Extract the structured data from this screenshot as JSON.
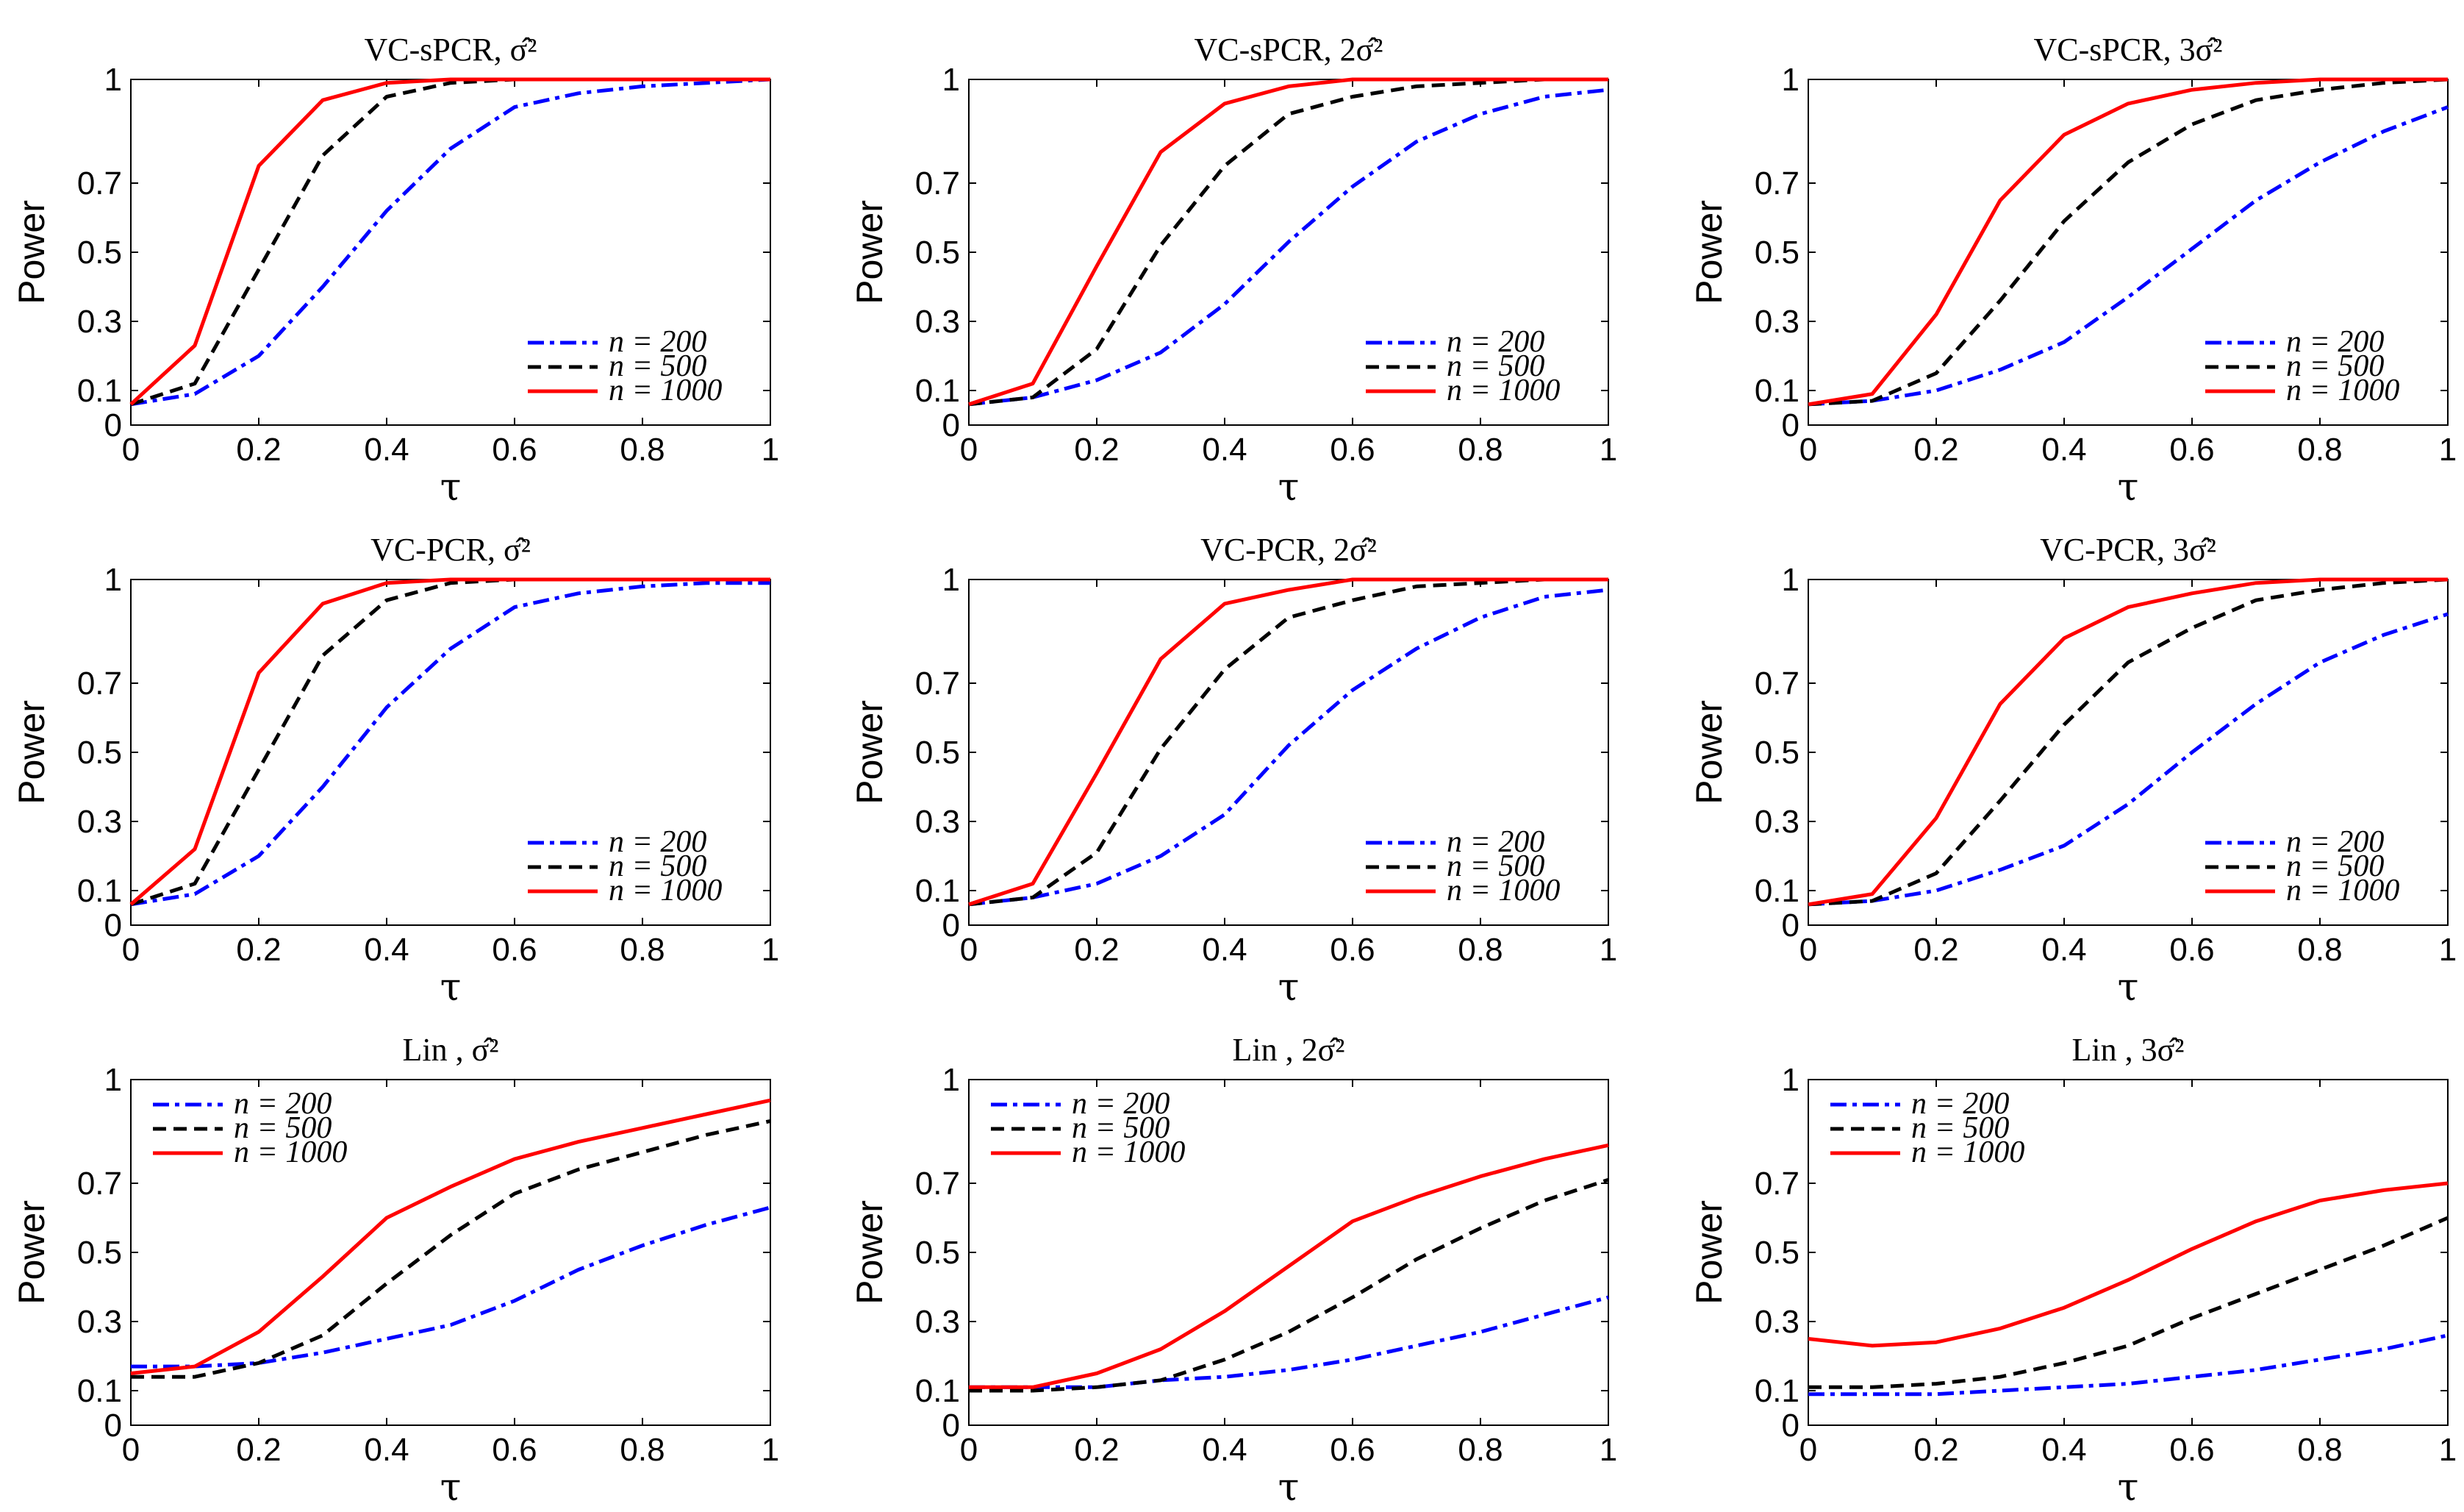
{
  "colors": {
    "n200": "#0000ff",
    "n500": "#000000",
    "n1000": "#ff0000"
  },
  "chart_data": [
    {
      "type": "line",
      "title": "VC-sPCR, σ̂²",
      "xlabel": "τ",
      "ylabel": "Power",
      "xlim": [
        0,
        1
      ],
      "ylim": [
        0,
        1
      ],
      "xticks": [
        "0",
        "0.2",
        "0.4",
        "0.6",
        "0.8",
        "1"
      ],
      "yticks": [
        "0",
        "0.1",
        "0.3",
        "0.5",
        "0.7",
        "1"
      ],
      "legend_position": "bottom-right",
      "x": [
        0,
        0.1,
        0.2,
        0.3,
        0.4,
        0.5,
        0.6,
        0.7,
        0.8,
        0.9,
        1
      ],
      "series": [
        {
          "name": "n = 200",
          "values": [
            0.06,
            0.09,
            0.2,
            0.4,
            0.62,
            0.8,
            0.92,
            0.96,
            0.98,
            0.99,
            1.0
          ]
        },
        {
          "name": "n = 500",
          "values": [
            0.06,
            0.12,
            0.45,
            0.78,
            0.95,
            0.99,
            1.0,
            1.0,
            1.0,
            1.0,
            1.0
          ]
        },
        {
          "name": "n = 1000",
          "values": [
            0.06,
            0.23,
            0.75,
            0.94,
            0.99,
            1.0,
            1.0,
            1.0,
            1.0,
            1.0,
            1.0
          ]
        }
      ]
    },
    {
      "type": "line",
      "title": "VC-sPCR, 2σ̂²",
      "xlabel": "τ",
      "ylabel": "Power",
      "xlim": [
        0,
        1
      ],
      "ylim": [
        0,
        1
      ],
      "xticks": [
        "0",
        "0.2",
        "0.4",
        "0.6",
        "0.8",
        "1"
      ],
      "yticks": [
        "0",
        "0.1",
        "0.3",
        "0.5",
        "0.7",
        "1"
      ],
      "legend_position": "bottom-right",
      "x": [
        0,
        0.1,
        0.2,
        0.3,
        0.4,
        0.5,
        0.6,
        0.7,
        0.8,
        0.9,
        1
      ],
      "series": [
        {
          "name": "n = 200",
          "values": [
            0.06,
            0.08,
            0.13,
            0.21,
            0.35,
            0.53,
            0.69,
            0.82,
            0.9,
            0.95,
            0.97
          ]
        },
        {
          "name": "n = 500",
          "values": [
            0.06,
            0.08,
            0.22,
            0.52,
            0.75,
            0.9,
            0.95,
            0.98,
            0.99,
            1.0,
            1.0
          ]
        },
        {
          "name": "n = 1000",
          "values": [
            0.06,
            0.12,
            0.46,
            0.79,
            0.93,
            0.98,
            1.0,
            1.0,
            1.0,
            1.0,
            1.0
          ]
        }
      ]
    },
    {
      "type": "line",
      "title": "VC-sPCR, 3σ̂²",
      "xlabel": "τ",
      "ylabel": "Power",
      "xlim": [
        0,
        1
      ],
      "ylim": [
        0,
        1
      ],
      "xticks": [
        "0",
        "0.2",
        "0.4",
        "0.6",
        "0.8",
        "1"
      ],
      "yticks": [
        "0",
        "0.1",
        "0.3",
        "0.5",
        "0.7",
        "1"
      ],
      "legend_position": "bottom-right",
      "x": [
        0,
        0.1,
        0.2,
        0.3,
        0.4,
        0.5,
        0.6,
        0.7,
        0.8,
        0.9,
        1
      ],
      "series": [
        {
          "name": "n = 200",
          "values": [
            0.06,
            0.07,
            0.1,
            0.16,
            0.24,
            0.37,
            0.51,
            0.65,
            0.76,
            0.85,
            0.92
          ]
        },
        {
          "name": "n = 500",
          "values": [
            0.06,
            0.07,
            0.15,
            0.36,
            0.59,
            0.76,
            0.87,
            0.94,
            0.97,
            0.99,
            1.0
          ]
        },
        {
          "name": "n = 1000",
          "values": [
            0.06,
            0.09,
            0.32,
            0.65,
            0.84,
            0.93,
            0.97,
            0.99,
            1.0,
            1.0,
            1.0
          ]
        }
      ]
    },
    {
      "type": "line",
      "title": "VC-PCR, σ̂²",
      "xlabel": "τ",
      "ylabel": "Power",
      "xlim": [
        0,
        1
      ],
      "ylim": [
        0,
        1
      ],
      "xticks": [
        "0",
        "0.2",
        "0.4",
        "0.6",
        "0.8",
        "1"
      ],
      "yticks": [
        "0",
        "0.1",
        "0.3",
        "0.5",
        "0.7",
        "1"
      ],
      "legend_position": "bottom-right",
      "x": [
        0,
        0.1,
        0.2,
        0.3,
        0.4,
        0.5,
        0.6,
        0.7,
        0.8,
        0.9,
        1
      ],
      "series": [
        {
          "name": "n = 200",
          "values": [
            0.06,
            0.09,
            0.2,
            0.4,
            0.63,
            0.8,
            0.92,
            0.96,
            0.98,
            0.99,
            0.99
          ]
        },
        {
          "name": "n = 500",
          "values": [
            0.06,
            0.12,
            0.45,
            0.78,
            0.94,
            0.99,
            1.0,
            1.0,
            1.0,
            1.0,
            1.0
          ]
        },
        {
          "name": "n = 1000",
          "values": [
            0.06,
            0.22,
            0.73,
            0.93,
            0.99,
            1.0,
            1.0,
            1.0,
            1.0,
            1.0,
            1.0
          ]
        }
      ]
    },
    {
      "type": "line",
      "title": "VC-PCR, 2σ̂²",
      "xlabel": "τ",
      "ylabel": "Power",
      "xlim": [
        0,
        1
      ],
      "ylim": [
        0,
        1
      ],
      "xticks": [
        "0",
        "0.2",
        "0.4",
        "0.6",
        "0.8",
        "1"
      ],
      "yticks": [
        "0",
        "0.1",
        "0.3",
        "0.5",
        "0.7",
        "1"
      ],
      "legend_position": "bottom-right",
      "x": [
        0,
        0.1,
        0.2,
        0.3,
        0.4,
        0.5,
        0.6,
        0.7,
        0.8,
        0.9,
        1
      ],
      "series": [
        {
          "name": "n = 200",
          "values": [
            0.06,
            0.08,
            0.12,
            0.2,
            0.32,
            0.52,
            0.68,
            0.8,
            0.89,
            0.95,
            0.97
          ]
        },
        {
          "name": "n = 500",
          "values": [
            0.06,
            0.08,
            0.21,
            0.51,
            0.74,
            0.89,
            0.94,
            0.98,
            0.99,
            1.0,
            1.0
          ]
        },
        {
          "name": "n = 1000",
          "values": [
            0.06,
            0.12,
            0.44,
            0.77,
            0.93,
            0.97,
            1.0,
            1.0,
            1.0,
            1.0,
            1.0
          ]
        }
      ]
    },
    {
      "type": "line",
      "title": "VC-PCR, 3σ̂²",
      "xlabel": "τ",
      "ylabel": "Power",
      "xlim": [
        0,
        1
      ],
      "ylim": [
        0,
        1
      ],
      "xticks": [
        "0",
        "0.2",
        "0.4",
        "0.6",
        "0.8",
        "1"
      ],
      "yticks": [
        "0",
        "0.1",
        "0.3",
        "0.5",
        "0.7",
        "1"
      ],
      "legend_position": "bottom-right",
      "x": [
        0,
        0.1,
        0.2,
        0.3,
        0.4,
        0.5,
        0.6,
        0.7,
        0.8,
        0.9,
        1
      ],
      "series": [
        {
          "name": "n = 200",
          "values": [
            0.06,
            0.07,
            0.1,
            0.16,
            0.23,
            0.35,
            0.5,
            0.64,
            0.76,
            0.84,
            0.9
          ]
        },
        {
          "name": "n = 500",
          "values": [
            0.06,
            0.07,
            0.15,
            0.36,
            0.58,
            0.76,
            0.86,
            0.94,
            0.97,
            0.99,
            1.0
          ]
        },
        {
          "name": "n = 1000",
          "values": [
            0.06,
            0.09,
            0.31,
            0.64,
            0.83,
            0.92,
            0.96,
            0.99,
            1.0,
            1.0,
            1.0
          ]
        }
      ]
    },
    {
      "type": "line",
      "title": "Lin , σ̂²",
      "xlabel": "τ",
      "ylabel": "Power",
      "xlim": [
        0,
        1
      ],
      "ylim": [
        0,
        1
      ],
      "xticks": [
        "0",
        "0.2",
        "0.4",
        "0.6",
        "0.8",
        "1"
      ],
      "yticks": [
        "0",
        "0.1",
        "0.3",
        "0.5",
        "0.7",
        "1"
      ],
      "legend_position": "top-left",
      "x": [
        0,
        0.1,
        0.2,
        0.3,
        0.4,
        0.5,
        0.6,
        0.7,
        0.8,
        0.9,
        1
      ],
      "series": [
        {
          "name": "n = 200",
          "values": [
            0.17,
            0.17,
            0.18,
            0.21,
            0.25,
            0.29,
            0.36,
            0.45,
            0.52,
            0.58,
            0.63
          ]
        },
        {
          "name": "n = 500",
          "values": [
            0.14,
            0.14,
            0.18,
            0.26,
            0.41,
            0.55,
            0.67,
            0.74,
            0.79,
            0.84,
            0.88
          ]
        },
        {
          "name": "n = 1000",
          "values": [
            0.15,
            0.17,
            0.27,
            0.43,
            0.6,
            0.69,
            0.77,
            0.82,
            0.86,
            0.9,
            0.94
          ]
        }
      ]
    },
    {
      "type": "line",
      "title": "Lin , 2σ̂²",
      "xlabel": "τ",
      "ylabel": "Power",
      "xlim": [
        0,
        1
      ],
      "ylim": [
        0,
        1
      ],
      "xticks": [
        "0",
        "0.2",
        "0.4",
        "0.6",
        "0.8",
        "1"
      ],
      "yticks": [
        "0",
        "0.1",
        "0.3",
        "0.5",
        "0.7",
        "1"
      ],
      "legend_position": "top-left",
      "x": [
        0,
        0.1,
        0.2,
        0.3,
        0.4,
        0.5,
        0.6,
        0.7,
        0.8,
        0.9,
        1
      ],
      "series": [
        {
          "name": "n = 200",
          "values": [
            0.11,
            0.11,
            0.11,
            0.13,
            0.14,
            0.16,
            0.19,
            0.23,
            0.27,
            0.32,
            0.37
          ]
        },
        {
          "name": "n = 500",
          "values": [
            0.1,
            0.1,
            0.11,
            0.13,
            0.19,
            0.27,
            0.37,
            0.48,
            0.57,
            0.65,
            0.71
          ]
        },
        {
          "name": "n = 1000",
          "values": [
            0.11,
            0.11,
            0.15,
            0.22,
            0.33,
            0.46,
            0.59,
            0.66,
            0.72,
            0.77,
            0.81
          ]
        }
      ]
    },
    {
      "type": "line",
      "title": "Lin , 3σ̂²",
      "xlabel": "τ",
      "ylabel": "Power",
      "xlim": [
        0,
        1
      ],
      "ylim": [
        0,
        1
      ],
      "xticks": [
        "0",
        "0.2",
        "0.4",
        "0.6",
        "0.8",
        "1"
      ],
      "yticks": [
        "0",
        "0.1",
        "0.3",
        "0.5",
        "0.7",
        "1"
      ],
      "legend_position": "top-left",
      "x": [
        0,
        0.1,
        0.2,
        0.3,
        0.4,
        0.5,
        0.6,
        0.7,
        0.8,
        0.9,
        1
      ],
      "series": [
        {
          "name": "n = 200",
          "values": [
            0.09,
            0.09,
            0.09,
            0.1,
            0.11,
            0.12,
            0.14,
            0.16,
            0.19,
            0.22,
            0.26
          ]
        },
        {
          "name": "n = 500",
          "values": [
            0.11,
            0.11,
            0.12,
            0.14,
            0.18,
            0.23,
            0.31,
            0.38,
            0.45,
            0.52,
            0.6
          ]
        },
        {
          "name": "n = 1000",
          "values": [
            0.25,
            0.23,
            0.24,
            0.28,
            0.34,
            0.42,
            0.51,
            0.59,
            0.65,
            0.68,
            0.7
          ]
        }
      ]
    }
  ]
}
